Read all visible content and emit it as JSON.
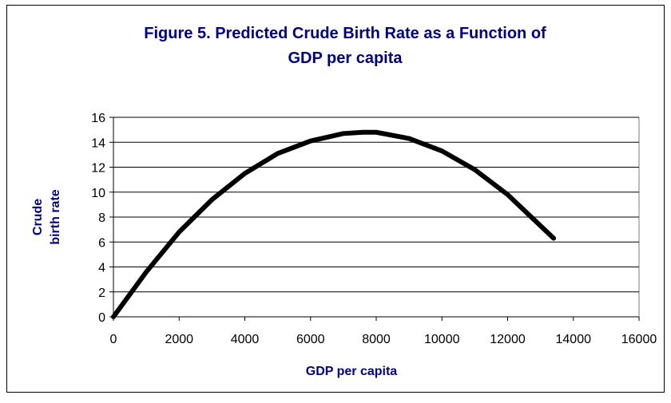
{
  "chart_data": {
    "type": "line",
    "title": [
      "Figure 5.  Predicted Crude Birth Rate as a Function of",
      "GDP per capita"
    ],
    "xlabel": "GDP per capita",
    "ylabel": [
      "Crude",
      "birth rate"
    ],
    "x": [
      0,
      1000,
      2000,
      3000,
      4000,
      5000,
      6000,
      7000,
      7600,
      8000,
      9000,
      10000,
      11000,
      12000,
      13000,
      13400
    ],
    "series": [
      {
        "name": "Predicted crude birth rate",
        "color": "#000000",
        "values": [
          0,
          3.6,
          6.8,
          9.4,
          11.5,
          13.1,
          14.1,
          14.7,
          14.8,
          14.8,
          14.3,
          13.3,
          11.8,
          9.8,
          7.3,
          6.3
        ]
      }
    ],
    "xlim": [
      0,
      16000
    ],
    "xticks": [
      0,
      2000,
      4000,
      6000,
      8000,
      10000,
      12000,
      14000,
      16000
    ],
    "ylim": [
      0,
      16
    ],
    "yticks": [
      0,
      2,
      4,
      6,
      8,
      10,
      12,
      14,
      16
    ],
    "grid": true,
    "legend": false
  }
}
